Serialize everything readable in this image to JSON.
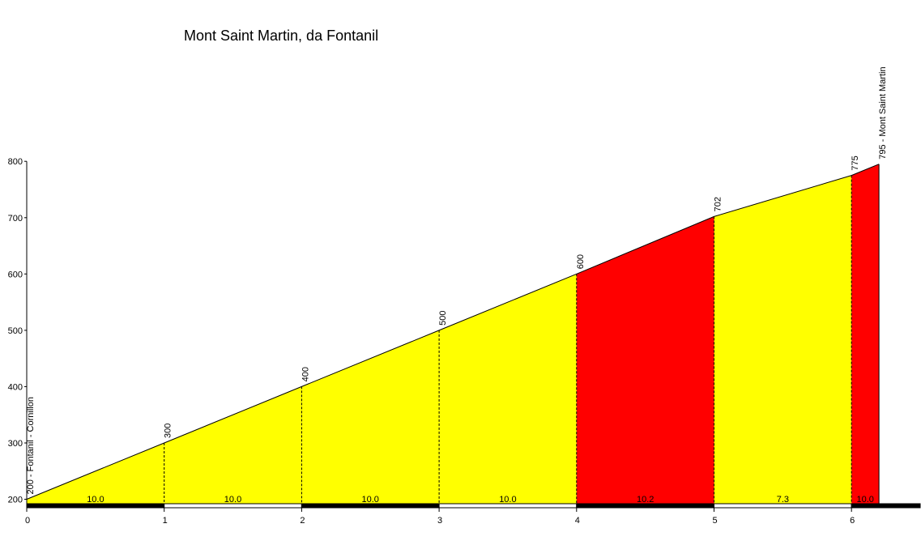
{
  "chart_data": {
    "type": "area",
    "title": "Mont Saint Martin, da Fontanil",
    "xlabel": "",
    "ylabel": "",
    "xlim": [
      0,
      6.5
    ],
    "ylim": [
      190,
      800
    ],
    "x_ticks": [
      0,
      1,
      2,
      3,
      4,
      5,
      6
    ],
    "y_ticks": [
      200,
      300,
      400,
      500,
      600,
      700,
      800
    ],
    "grid": false,
    "profile": [
      {
        "x": 0,
        "y": 200
      },
      {
        "x": 1,
        "y": 300
      },
      {
        "x": 2,
        "y": 400
      },
      {
        "x": 3,
        "y": 500
      },
      {
        "x": 4,
        "y": 600
      },
      {
        "x": 5,
        "y": 702
      },
      {
        "x": 6,
        "y": 775
      },
      {
        "x": 6.2,
        "y": 795
      }
    ],
    "point_labels": [
      "200 - Fontanil - Cornillon",
      "300",
      "400",
      "500",
      "600",
      "702",
      "775",
      "795 - Mont Saint Martin"
    ],
    "segments": [
      {
        "from": 0,
        "to": 1,
        "gradient": "10.0",
        "color": "#ffff00"
      },
      {
        "from": 1,
        "to": 2,
        "gradient": "10.0",
        "color": "#ffff00"
      },
      {
        "from": 2,
        "to": 3,
        "gradient": "10.0",
        "color": "#ffff00"
      },
      {
        "from": 3,
        "to": 4,
        "gradient": "10.0",
        "color": "#ffff00"
      },
      {
        "from": 4,
        "to": 5,
        "gradient": "10.2",
        "color": "#ff0000"
      },
      {
        "from": 5,
        "to": 6,
        "gradient": "7.3",
        "color": "#ffff00"
      },
      {
        "from": 6,
        "to": 6.2,
        "gradient": "10.0",
        "color": "#ff0000"
      }
    ]
  }
}
